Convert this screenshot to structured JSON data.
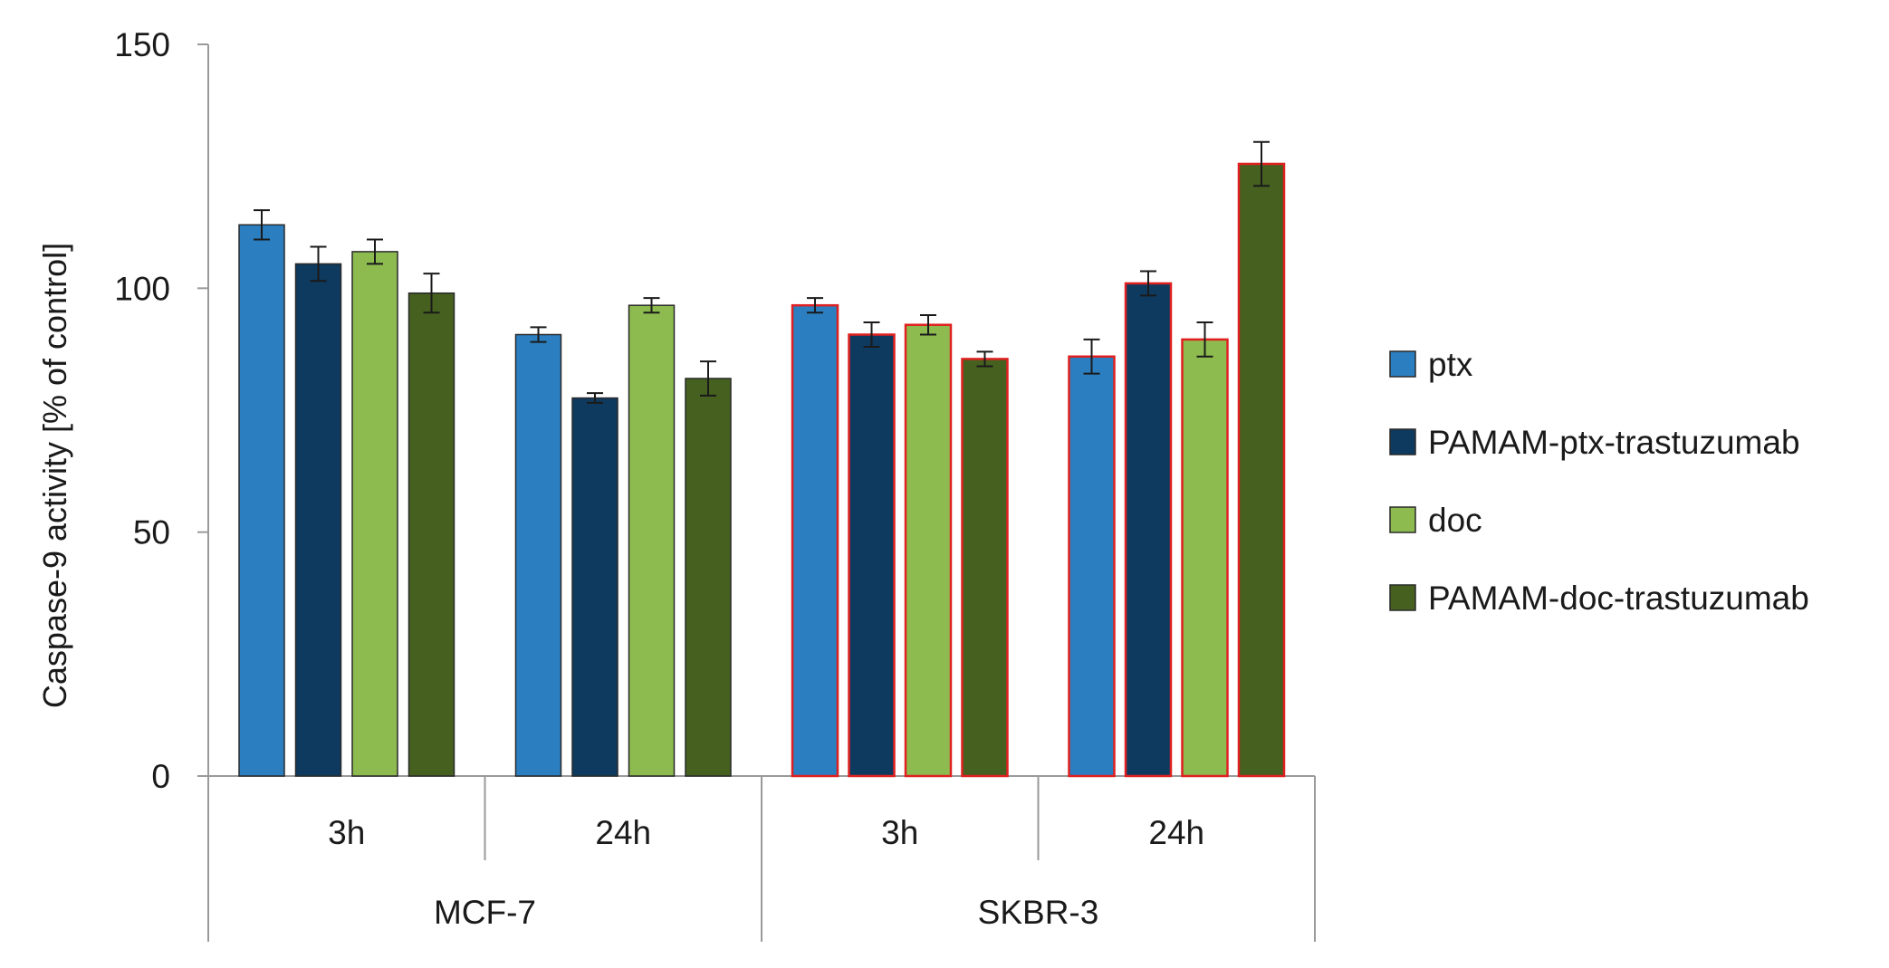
{
  "chart_data": {
    "type": "bar",
    "title": "",
    "xlabel": "",
    "ylabel": "Caspase-9 activity [% of control]",
    "ylim": [
      0,
      150
    ],
    "yticks": [
      0,
      50,
      100,
      150
    ],
    "grid": false,
    "legend_position": "right",
    "groups": [
      {
        "label": "MCF-7",
        "subcategories": [
          "3h",
          "24h"
        ]
      },
      {
        "label": "SKBR-3",
        "subcategories": [
          "3h",
          "24h"
        ]
      }
    ],
    "categories": [
      "MCF-7 3h",
      "MCF-7 24h",
      "SKBR-3 3h",
      "SKBR-3 24h"
    ],
    "series": [
      {
        "name": "ptx",
        "color": "#2b7fc0",
        "values": [
          113,
          90.5,
          96.5,
          86
        ],
        "errors": [
          3,
          1.5,
          1.5,
          3.5
        ]
      },
      {
        "name": "PAMAM-ptx-trastuzumab",
        "color": "#0e3a5f",
        "values": [
          105,
          77.5,
          90.5,
          101
        ],
        "errors": [
          3.5,
          1,
          2.5,
          2.5
        ]
      },
      {
        "name": "doc",
        "color": "#8dbb4f",
        "values": [
          107.5,
          96.5,
          92.5,
          89.5
        ],
        "errors": [
          2.5,
          1.5,
          2,
          3.5
        ]
      },
      {
        "name": "PAMAM-doc-trastuzumab",
        "color": "#45601f",
        "values": [
          99,
          81.5,
          85.5,
          125.5
        ],
        "errors": [
          4,
          3.5,
          1.5,
          4.5
        ]
      }
    ],
    "highlighted_group": "SKBR-3",
    "highlight_outline_color": "#e02020"
  }
}
